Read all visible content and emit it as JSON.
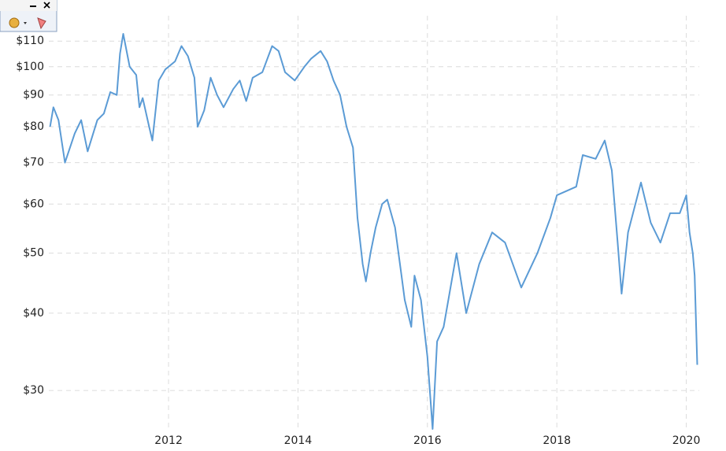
{
  "chart_data": {
    "type": "line",
    "color": "#5b9bd5",
    "log_scale": true,
    "grid": true,
    "x": [
      2010.17,
      2010.22,
      2010.3,
      2010.4,
      2010.55,
      2010.65,
      2010.75,
      2010.9,
      2011.0,
      2011.1,
      2011.2,
      2011.25,
      2011.3,
      2011.4,
      2011.5,
      2011.55,
      2011.6,
      2011.7,
      2011.75,
      2011.85,
      2011.95,
      2012.1,
      2012.2,
      2012.3,
      2012.4,
      2012.45,
      2012.55,
      2012.65,
      2012.75,
      2012.85,
      2013.0,
      2013.1,
      2013.2,
      2013.3,
      2013.45,
      2013.6,
      2013.7,
      2013.8,
      2013.95,
      2014.1,
      2014.2,
      2014.35,
      2014.45,
      2014.55,
      2014.65,
      2014.75,
      2014.85,
      2014.92,
      2015.0,
      2015.05,
      2015.12,
      2015.2,
      2015.3,
      2015.38,
      2015.5,
      2015.6,
      2015.65,
      2015.75,
      2015.8,
      2015.9,
      2016.0,
      2016.08,
      2016.15,
      2016.25,
      2016.45,
      2016.6,
      2016.8,
      2017.0,
      2017.2,
      2017.45,
      2017.7,
      2017.9,
      2018.0,
      2018.3,
      2018.4,
      2018.6,
      2018.74,
      2018.85,
      2018.94,
      2019.0,
      2019.1,
      2019.3,
      2019.45,
      2019.6,
      2019.75,
      2019.9,
      2020.0,
      2020.05,
      2020.1,
      2020.13,
      2020.17
    ],
    "values": [
      80,
      86,
      82,
      70,
      78,
      82,
      73,
      82,
      84,
      91,
      90,
      105,
      113,
      100,
      97,
      86,
      89,
      80,
      76,
      95,
      99,
      102,
      108,
      104,
      96,
      80,
      85,
      96,
      90,
      86,
      92,
      95,
      88,
      96,
      98,
      108,
      106,
      98,
      95,
      100,
      103,
      106,
      102,
      95,
      90,
      80,
      74,
      57,
      48,
      45,
      50,
      55,
      60,
      61,
      55,
      46,
      42,
      38,
      46,
      42,
      34,
      26,
      36,
      38,
      50,
      40,
      48,
      54,
      52,
      44,
      50,
      57,
      62,
      64,
      72,
      71,
      76,
      68,
      52,
      43,
      54,
      65,
      56,
      52,
      58,
      58,
      62,
      54,
      50,
      46,
      33
    ],
    "xlim": [
      2010.15,
      2020.2
    ],
    "xticks": [
      2012,
      2014,
      2016,
      2018,
      2020
    ],
    "ylim": [
      26,
      115
    ],
    "yticks": [
      {
        "value": 30,
        "label": "$30"
      },
      {
        "value": 40,
        "label": "$40"
      },
      {
        "value": 50,
        "label": "$50"
      },
      {
        "value": 60,
        "label": "$60"
      },
      {
        "value": 70,
        "label": "$70"
      },
      {
        "value": 80,
        "label": "$80"
      },
      {
        "value": 90,
        "label": "$90"
      },
      {
        "value": 100,
        "label": "$100"
      },
      {
        "value": 110,
        "label": "$110"
      }
    ]
  }
}
